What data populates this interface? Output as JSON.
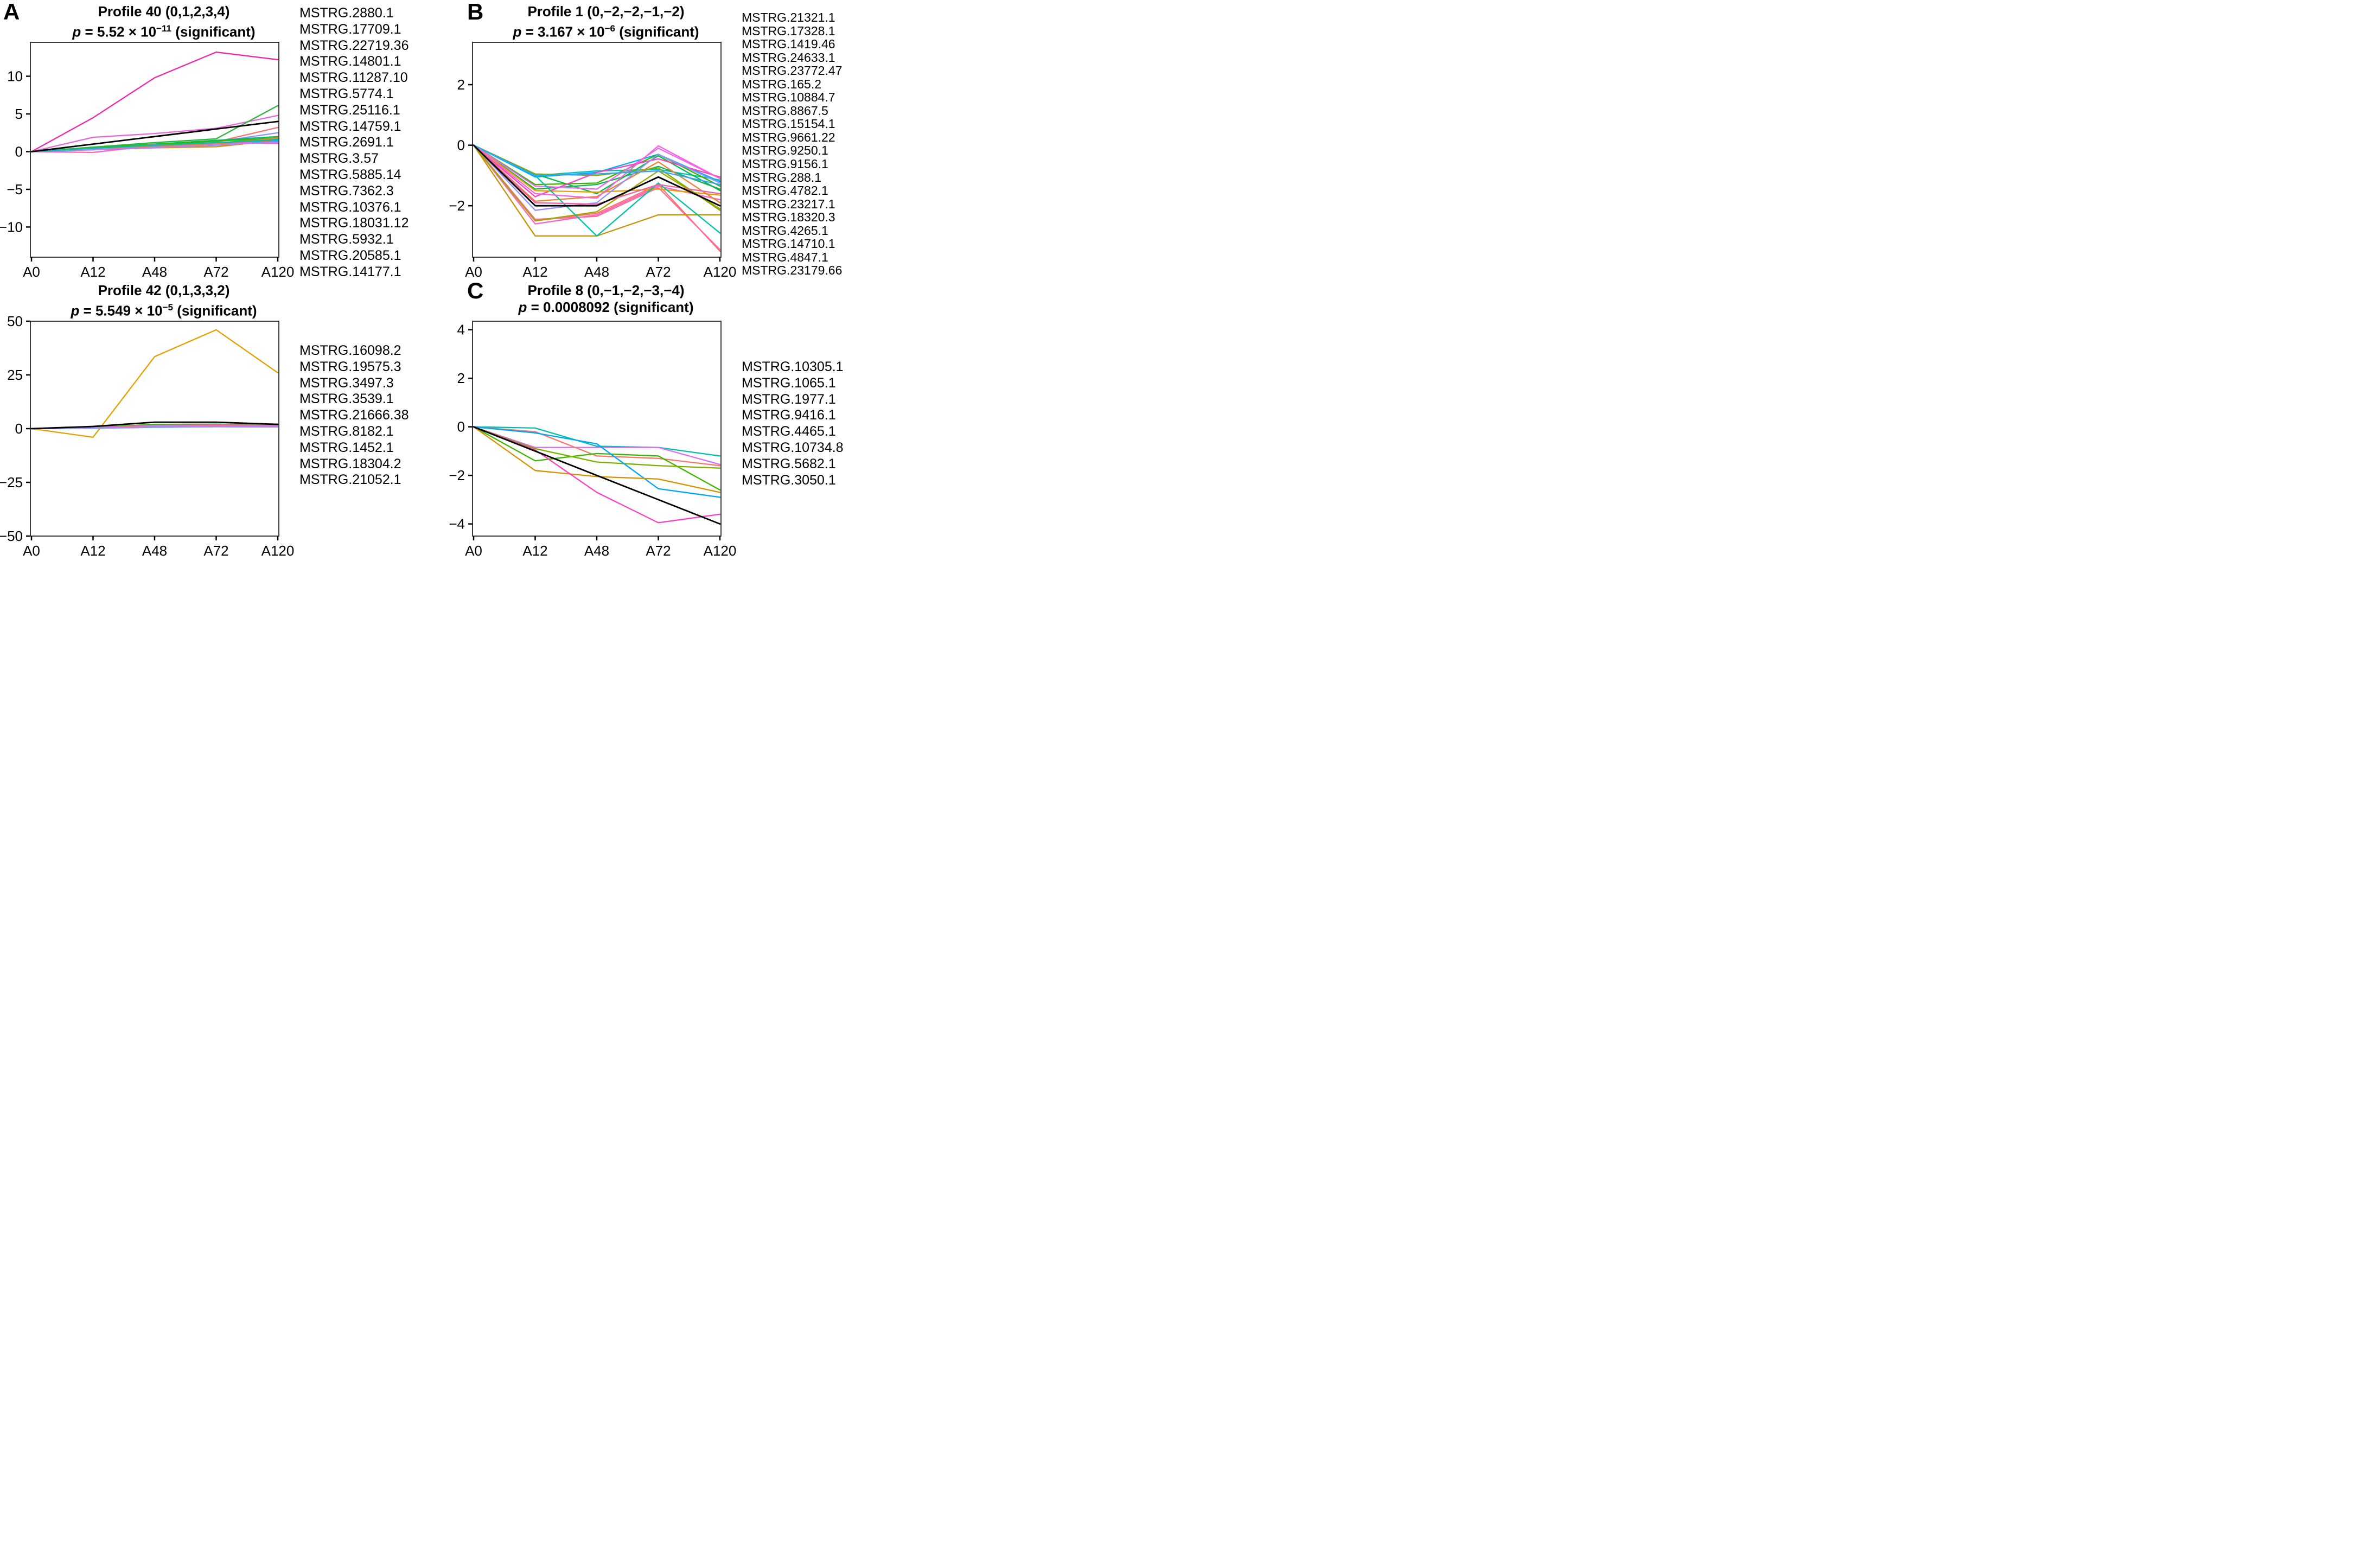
{
  "figure": {
    "background": "#ffffff",
    "x_axis_categories": [
      "A0",
      "A12",
      "A48",
      "A72",
      "A120"
    ]
  },
  "chart_data": [
    {
      "type": "line",
      "panel_letter": "A",
      "title": "Profile 40 (0,1,2,3,4)",
      "p_base": "5.52 × 10",
      "p_exp": "−11",
      "p_tail": " (significant)",
      "x": [
        "A0",
        "A12",
        "A48",
        "A72",
        "A120"
      ],
      "ylim": [
        -14,
        14.5
      ],
      "yticks": [
        -10,
        -5,
        0,
        5,
        10
      ],
      "grid": false,
      "legend_position": "right",
      "model_profile": {
        "name": "profile-model",
        "color": "#000000",
        "values": [
          0,
          1,
          2,
          3,
          4
        ]
      },
      "series": [
        {
          "name": "MSTRG.2880.1",
          "color": "#F327A8",
          "values": [
            0,
            4.5,
            9.8,
            13.2,
            12.2
          ]
        },
        {
          "name": "MSTRG.17709.1",
          "color": "#E966DC",
          "values": [
            0,
            1.9,
            2.4,
            3.1,
            4.8
          ]
        },
        {
          "name": "MSTRG.22719.36",
          "color": "#2BB53C",
          "values": [
            0,
            0.6,
            1.2,
            1.7,
            6.1
          ]
        },
        {
          "name": "MSTRG.14801.1",
          "color": "#F8766D",
          "values": [
            0,
            0.5,
            1.0,
            1.3,
            3.2
          ]
        },
        {
          "name": "MSTRG.11287.10",
          "color": "#9590FF",
          "values": [
            0,
            0.4,
            0.9,
            1.3,
            2.5
          ]
        },
        {
          "name": "MSTRG.5774.1",
          "color": "#00BA7C",
          "values": [
            0,
            0.5,
            1.0,
            1.5,
            2.0
          ]
        },
        {
          "name": "MSTRG.25116.1",
          "color": "#A3A500",
          "values": [
            0,
            0.4,
            0.8,
            1.1,
            1.9
          ]
        },
        {
          "name": "MSTRG.14759.1",
          "color": "#00AEF5",
          "values": [
            0,
            0.3,
            0.7,
            1.1,
            1.7
          ]
        },
        {
          "name": "MSTRG.2691.1",
          "color": "#00BFC4",
          "values": [
            0,
            0.3,
            0.7,
            0.9,
            1.6
          ]
        },
        {
          "name": "MSTRG.3.57",
          "color": "#D89000",
          "values": [
            0,
            0.25,
            0.5,
            0.65,
            1.5
          ]
        },
        {
          "name": "MSTRG.5885.14",
          "color": "#39B600",
          "values": [
            0,
            0.5,
            0.95,
            1.4,
            1.8
          ]
        },
        {
          "name": "MSTRG.7362.3",
          "color": "#E76BF3",
          "values": [
            0,
            0.35,
            0.9,
            1.1,
            1.3
          ]
        },
        {
          "name": "MSTRG.10376.1",
          "color": "#FF62BC",
          "values": [
            0,
            -0.1,
            0.8,
            1.2,
            1.1
          ]
        },
        {
          "name": "MSTRG.18031.12",
          "color": "#EA8331",
          "values": [
            0,
            0.4,
            0.75,
            1.0,
            1.8
          ]
        },
        {
          "name": "MSTRG.5932.1",
          "color": "#35A2FF",
          "values": [
            0,
            0.25,
            0.55,
            0.85,
            1.35
          ]
        },
        {
          "name": "MSTRG.20585.1",
          "color": "#C77CFF",
          "values": [
            0,
            0.3,
            0.55,
            0.9,
            1.25
          ]
        },
        {
          "name": "MSTRG.14177.1",
          "color": "#00C1A3",
          "values": [
            0,
            0.45,
            0.85,
            1.2,
            1.55
          ]
        }
      ]
    },
    {
      "type": "line",
      "panel_letter": "B",
      "title": "Profile 1 (0,−2,−2,−1,−2)",
      "p_base": "3.167 × 10",
      "p_exp": "−6",
      "p_tail": " (significant)",
      "x": [
        "A0",
        "A12",
        "A48",
        "A72",
        "A120"
      ],
      "ylim": [
        -3.7,
        3.4
      ],
      "yticks": [
        -2,
        0,
        2
      ],
      "grid": false,
      "legend_position": "right",
      "model_profile": {
        "name": "profile-model",
        "color": "#000000",
        "values": [
          0,
          -2,
          -2,
          -1.05,
          -2
        ]
      },
      "series": [
        {
          "name": "MSTRG.21321.1",
          "color": "#00B0F6",
          "values": [
            0,
            -1.05,
            -0.9,
            -0.3,
            -1.2
          ]
        },
        {
          "name": "MSTRG.17328.1",
          "color": "#00BFC4",
          "values": [
            0,
            -1.0,
            -0.85,
            -0.8,
            -1.15
          ]
        },
        {
          "name": "MSTRG.1419.46",
          "color": "#00BB4E",
          "values": [
            0,
            -0.95,
            -1.6,
            -0.35,
            -1.5
          ]
        },
        {
          "name": "MSTRG.24633.1",
          "color": "#39B600",
          "values": [
            0,
            -1.3,
            -1.25,
            -0.3,
            -1.35
          ]
        },
        {
          "name": "MSTRG.23772.47",
          "color": "#17B050",
          "values": [
            0,
            -1.45,
            -1.3,
            -0.7,
            -1.45
          ]
        },
        {
          "name": "MSTRG.165.2",
          "color": "#7CAE00",
          "values": [
            0,
            -0.95,
            -1.0,
            -0.75,
            -2.15
          ]
        },
        {
          "name": "MSTRG.10884.7",
          "color": "#E76BF3",
          "values": [
            0,
            -1.35,
            -1.45,
            -0.1,
            -1.1
          ]
        },
        {
          "name": "MSTRG.8867.5",
          "color": "#FF3FC1",
          "values": [
            0,
            -1.7,
            -0.9,
            -0.45,
            -1.05
          ]
        },
        {
          "name": "MSTRG.15154.1",
          "color": "#FF62BC",
          "values": [
            0,
            -2.6,
            -2.3,
            -1.35,
            -1.8
          ]
        },
        {
          "name": "MSTRG.9661.22",
          "color": "#F8766D",
          "values": [
            0,
            -2.5,
            -2.25,
            -1.3,
            -3.5
          ]
        },
        {
          "name": "MSTRG.9250.1",
          "color": "#FF6A98",
          "values": [
            0,
            -2.45,
            -2.35,
            -1.4,
            -3.45
          ]
        },
        {
          "name": "MSTRG.9156.1",
          "color": "#E69F00",
          "values": [
            0,
            -1.5,
            -1.55,
            -1.45,
            -1.65
          ]
        },
        {
          "name": "MSTRG.288.1",
          "color": "#EA8331",
          "values": [
            0,
            -1.85,
            -1.7,
            -0.55,
            -1.9
          ]
        },
        {
          "name": "MSTRG.4782.1",
          "color": "#9590FF",
          "values": [
            0,
            -2.15,
            -1.9,
            -0.3,
            -1.25
          ]
        },
        {
          "name": "MSTRG.23217.1",
          "color": "#C69306",
          "values": [
            0,
            -3.0,
            -3.0,
            -2.3,
            -2.3
          ]
        },
        {
          "name": "MSTRG.18320.3",
          "color": "#A3A500",
          "values": [
            0,
            -2.5,
            -2.2,
            -0.85,
            -2.1
          ]
        },
        {
          "name": "MSTRG.4265.1",
          "color": "#00C1A3",
          "values": [
            0,
            -1.0,
            -3.0,
            -1.25,
            -2.9
          ]
        },
        {
          "name": "MSTRG.14710.1",
          "color": "#FA62DB",
          "values": [
            0,
            -1.6,
            -1.75,
            -0.02,
            -1.1
          ]
        },
        {
          "name": "MSTRG.4847.1",
          "color": "#EE5FA7",
          "values": [
            0,
            -1.9,
            -1.95,
            -1.3,
            -1.6
          ]
        },
        {
          "name": "MSTRG.23179.66",
          "color": "#35A2FF",
          "values": [
            0,
            -1.0,
            -0.95,
            -0.85,
            -1.3
          ]
        }
      ]
    },
    {
      "type": "line",
      "panel_letter": "",
      "title": "Profile 42 (0,1,3,3,2)",
      "p_base": "5.549 × 10",
      "p_exp": "−5",
      "p_tail": " (significant)",
      "x": [
        "A0",
        "A12",
        "A48",
        "A72",
        "A120"
      ],
      "ylim": [
        -50,
        50
      ],
      "yticks": [
        -50,
        -25,
        0,
        25,
        50
      ],
      "grid": false,
      "legend_position": "right",
      "model_profile": {
        "name": "profile-model",
        "color": "#000000",
        "values": [
          0,
          1,
          3,
          3,
          2
        ]
      },
      "series": [
        {
          "name": "MSTRG.16098.2",
          "color": "#E69F00",
          "values": [
            0,
            -4,
            33.5,
            46,
            26
          ]
        },
        {
          "name": "MSTRG.19575.3",
          "color": "#39B600",
          "values": [
            0,
            0.5,
            2.0,
            2.1,
            1.8
          ]
        },
        {
          "name": "MSTRG.3497.3",
          "color": "#F564D4",
          "values": [
            0,
            0.4,
            1.5,
            1.7,
            1.5
          ]
        },
        {
          "name": "MSTRG.3539.1",
          "color": "#C77CFF",
          "values": [
            0,
            0.3,
            1.2,
            1.4,
            1.2
          ]
        },
        {
          "name": "MSTRG.21666.38",
          "color": "#00AEF5",
          "values": [
            0,
            0.2,
            0.8,
            1.0,
            0.9
          ]
        },
        {
          "name": "MSTRG.8182.1",
          "color": "#00BFC4",
          "values": [
            0,
            0.2,
            0.6,
            0.9,
            0.8
          ]
        },
        {
          "name": "MSTRG.1452.1",
          "color": "#FF62BC",
          "values": [
            0,
            0.3,
            1.0,
            1.3,
            1.1
          ]
        },
        {
          "name": "MSTRG.18304.2",
          "color": "#F8766D",
          "values": [
            0,
            0.3,
            0.9,
            1.1,
            1.0
          ]
        },
        {
          "name": "MSTRG.21052.1",
          "color": "#9590FF",
          "values": [
            0,
            0.2,
            0.7,
            0.9,
            0.8
          ]
        }
      ]
    },
    {
      "type": "line",
      "panel_letter": "C",
      "title": "Profile 8 (0,−1,−2,−3,−4)",
      "p_base": "0.0008092",
      "p_exp": "",
      "p_tail": " (significant)",
      "x": [
        "A0",
        "A12",
        "A48",
        "A72",
        "A120"
      ],
      "ylim": [
        -4.5,
        4.35
      ],
      "yticks": [
        -4,
        -2,
        0,
        2,
        4
      ],
      "grid": false,
      "legend_position": "right",
      "model_profile": {
        "name": "profile-model",
        "color": "#000000",
        "values": [
          0,
          -1,
          -2,
          -3,
          -4
        ]
      },
      "series": [
        {
          "name": "MSTRG.10305.1",
          "color": "#00BFA5",
          "values": [
            0,
            -0.05,
            -0.8,
            -0.85,
            -1.2
          ]
        },
        {
          "name": "MSTRG.1065.1",
          "color": "#DA70F0",
          "values": [
            0,
            -0.85,
            -0.85,
            -0.85,
            -1.55
          ]
        },
        {
          "name": "MSTRG.1977.1",
          "color": "#F8766D",
          "values": [
            0,
            -0.2,
            -1.2,
            -1.3,
            -1.6
          ]
        },
        {
          "name": "MSTRG.9416.1",
          "color": "#39B600",
          "values": [
            0,
            -1.4,
            -1.1,
            -1.2,
            -2.6
          ]
        },
        {
          "name": "MSTRG.4465.1",
          "color": "#7CAE00",
          "values": [
            0,
            -0.9,
            -1.45,
            -1.6,
            -1.7
          ]
        },
        {
          "name": "MSTRG.10734.8",
          "color": "#00A5F7",
          "values": [
            0,
            -0.25,
            -0.7,
            -2.55,
            -2.9
          ]
        },
        {
          "name": "MSTRG.5682.1",
          "color": "#D89000",
          "values": [
            0,
            -1.8,
            -2.05,
            -2.15,
            -2.7
          ]
        },
        {
          "name": "MSTRG.3050.1",
          "color": "#FF3FC1",
          "values": [
            0,
            -0.95,
            -2.7,
            -3.95,
            -3.6
          ]
        }
      ]
    }
  ]
}
